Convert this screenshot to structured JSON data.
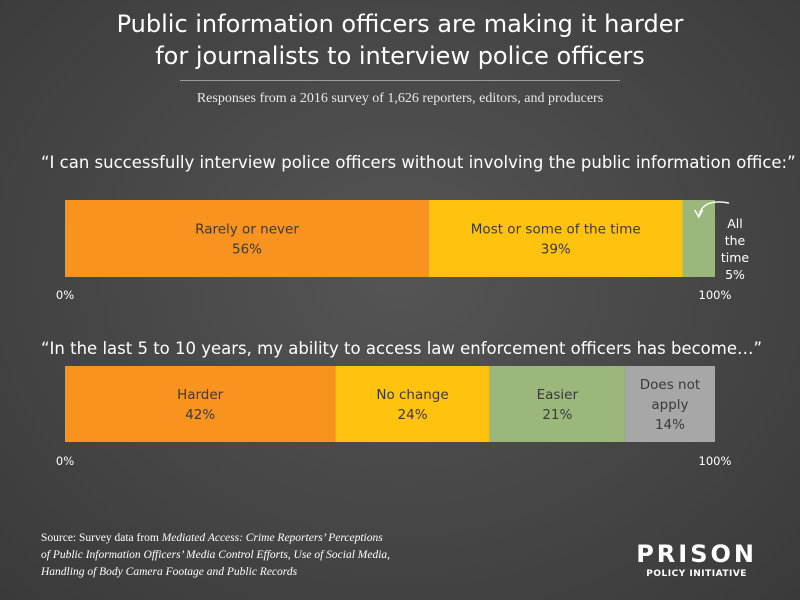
{
  "title_lines": [
    "Public information officers are making it harder",
    "for journalists to interview police officers"
  ],
  "subtitle": "Responses from a 2016 survey of 1,626 reporters, editors, and producers",
  "colors": {
    "orange": "#F7931E",
    "yellow": "#FFC20E",
    "green": "#9BB77C",
    "gray": "#A7A7A7"
  },
  "chart_data": [
    {
      "type": "bar",
      "orientation": "horizontal-stacked",
      "title": "“I can successfully interview police officers without involving the public information office:”",
      "xlim": [
        0,
        100
      ],
      "axis_labels": [
        "0%",
        "100%"
      ],
      "series": [
        {
          "name": "Rarely or never",
          "value": 56,
          "label": "56%",
          "color": "#F7931E"
        },
        {
          "name": "Most or some of the time",
          "value": 39,
          "label": "39%",
          "color": "#FFC20E"
        },
        {
          "name": "All the time",
          "value": 5,
          "label": "5%",
          "color": "#9BB77C"
        }
      ]
    },
    {
      "type": "bar",
      "orientation": "horizontal-stacked",
      "title": "“In the last 5 to 10 years, my ability to access law enforcement officers has become…”",
      "xlim": [
        0,
        100
      ],
      "axis_labels": [
        "0%",
        "100%"
      ],
      "series": [
        {
          "name": "Harder",
          "value": 42,
          "label": "42%",
          "color": "#F7931E"
        },
        {
          "name": "No change",
          "value": 24,
          "label": "24%",
          "color": "#FFC20E"
        },
        {
          "name": "Easier",
          "value": 21,
          "label": "21%",
          "color": "#9BB77C"
        },
        {
          "name": "Does not apply",
          "value": 14,
          "label": "14%",
          "color": "#A7A7A7"
        }
      ]
    }
  ],
  "source": {
    "lead": "Source: Survey data from ",
    "line1_italic": "Mediated Access: Crime Reporters’ Perceptions",
    "line2_italic": "of Public Information Officers’ Media Control Efforts, Use of Social Media,",
    "line3_italic": "Handling of Body Camera Footage and Public Records"
  },
  "logo": {
    "top": "PRISON",
    "bottom": "POLICY INITIATIVE"
  }
}
